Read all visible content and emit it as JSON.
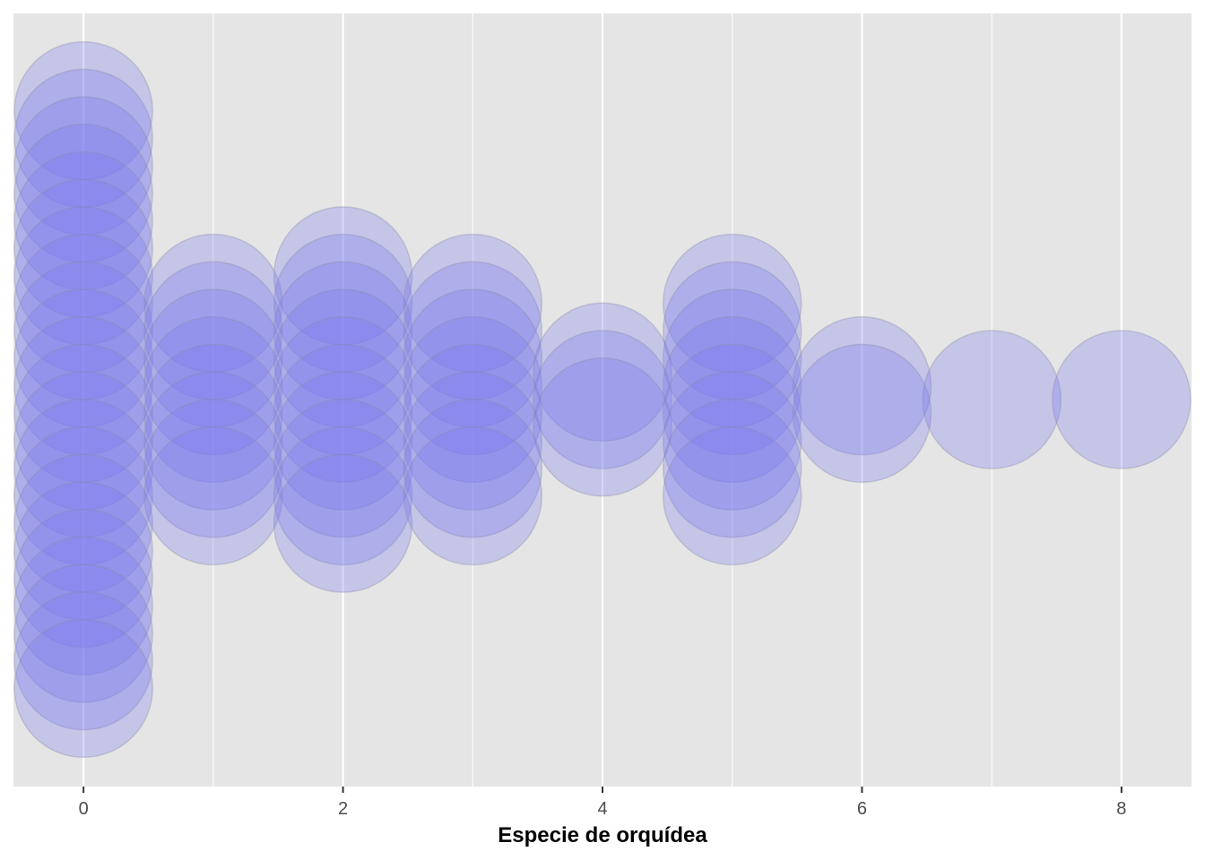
{
  "chart_data": {
    "type": "scatter",
    "subtype": "dotplot",
    "title": "",
    "xlabel": "Especie de orquídea",
    "ylabel": "",
    "xlim": [
      -0.54,
      8.54
    ],
    "x_ticks": [
      0,
      2,
      4,
      6,
      8
    ],
    "x_tick_labels": [
      "0",
      "2",
      "4",
      "6",
      "8"
    ],
    "grid": "vertical",
    "stacking": "center",
    "point_color": "#7b7bee",
    "point_alpha": 0.3,
    "panel_color": "#e5e5e5",
    "gridline_color": "#ffffff",
    "counts": [
      {
        "x": 0,
        "count": 22
      },
      {
        "x": 1,
        "count": 8
      },
      {
        "x": 2,
        "count": 10
      },
      {
        "x": 3,
        "count": 8
      },
      {
        "x": 4,
        "count": 3
      },
      {
        "x": 5,
        "count": 8
      },
      {
        "x": 6,
        "count": 2
      },
      {
        "x": 7,
        "count": 1
      },
      {
        "x": 8,
        "count": 1
      }
    ]
  }
}
